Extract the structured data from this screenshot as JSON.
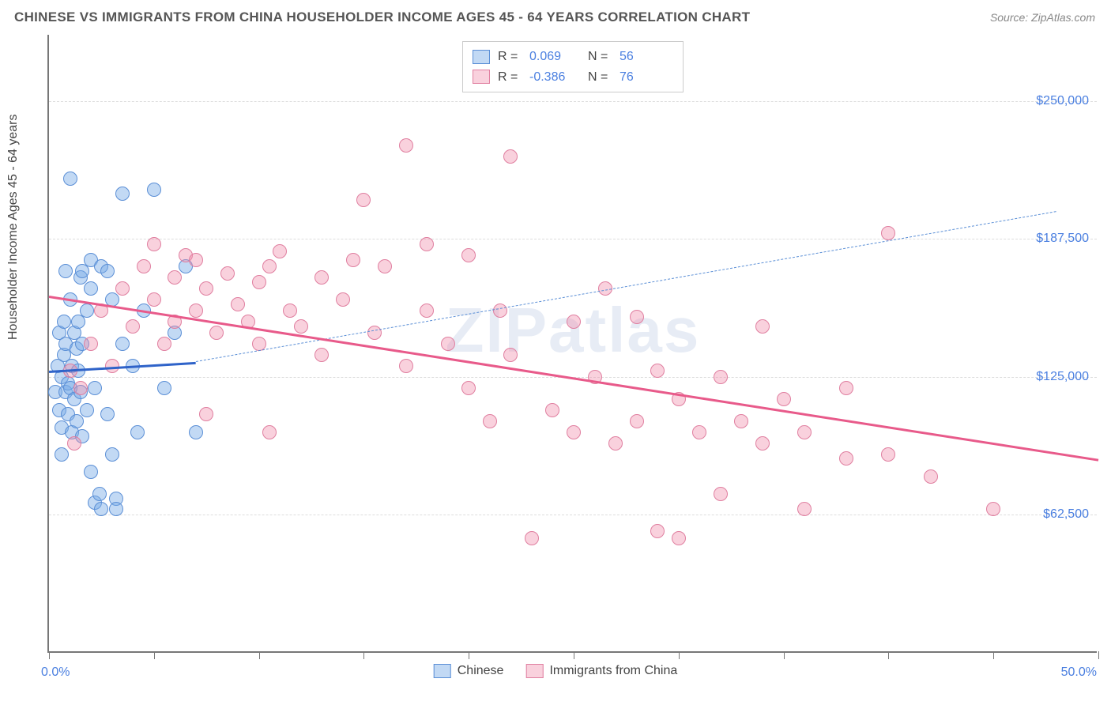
{
  "title": "CHINESE VS IMMIGRANTS FROM CHINA HOUSEHOLDER INCOME AGES 45 - 64 YEARS CORRELATION CHART",
  "source": "Source: ZipAtlas.com",
  "watermark": "ZIPatlas",
  "ylabel": "Householder Income Ages 45 - 64 years",
  "chart": {
    "type": "scatter",
    "background_color": "#ffffff",
    "grid_color": "#dddddd",
    "axis_color": "#777777",
    "x": {
      "min": 0.0,
      "max": 50.0,
      "label_min": "0.0%",
      "label_max": "50.0%",
      "ticks": [
        0,
        5,
        10,
        15,
        20,
        25,
        30,
        35,
        40,
        45,
        50
      ]
    },
    "y": {
      "min": 0,
      "max": 280000,
      "gridlines": [
        62500,
        125000,
        187500,
        250000
      ],
      "tick_labels": [
        "$62,500",
        "$125,000",
        "$187,500",
        "$250,000"
      ]
    },
    "series": [
      {
        "name": "Chinese",
        "label": "Chinese",
        "marker_fill": "rgba(120,170,230,0.45)",
        "marker_stroke": "#5b8fd6",
        "line_color": "#2f63c9",
        "dashed_color": "#5b8fd6",
        "r": 0.069,
        "n": 56,
        "trend": {
          "x1": 0.0,
          "y1": 128000,
          "x2": 7.0,
          "y2": 132000,
          "dash_x2": 48.0,
          "dash_y2": 200000
        },
        "points": [
          [
            0.3,
            118000
          ],
          [
            0.4,
            130000
          ],
          [
            0.5,
            110000
          ],
          [
            0.5,
            145000
          ],
          [
            0.6,
            102000
          ],
          [
            0.6,
            125000
          ],
          [
            0.7,
            135000
          ],
          [
            0.7,
            150000
          ],
          [
            0.8,
            118000
          ],
          [
            0.8,
            140000
          ],
          [
            0.9,
            108000
          ],
          [
            0.9,
            122000
          ],
          [
            1.0,
            160000
          ],
          [
            1.0,
            120000
          ],
          [
            1.1,
            130000
          ],
          [
            1.1,
            100000
          ],
          [
            1.2,
            145000
          ],
          [
            1.2,
            115000
          ],
          [
            1.3,
            138000
          ],
          [
            1.3,
            105000
          ],
          [
            1.4,
            150000
          ],
          [
            1.4,
            128000
          ],
          [
            1.5,
            170000
          ],
          [
            1.5,
            118000
          ],
          [
            1.6,
            140000
          ],
          [
            1.6,
            98000
          ],
          [
            1.8,
            155000
          ],
          [
            1.8,
            110000
          ],
          [
            2.0,
            178000
          ],
          [
            2.0,
            165000
          ],
          [
            2.0,
            82000
          ],
          [
            2.2,
            120000
          ],
          [
            2.2,
            68000
          ],
          [
            2.4,
            72000
          ],
          [
            2.5,
            65000
          ],
          [
            2.5,
            175000
          ],
          [
            2.8,
            108000
          ],
          [
            3.0,
            160000
          ],
          [
            3.0,
            90000
          ],
          [
            3.2,
            70000
          ],
          [
            3.2,
            65000
          ],
          [
            3.5,
            140000
          ],
          [
            3.5,
            208000
          ],
          [
            4.0,
            130000
          ],
          [
            4.2,
            100000
          ],
          [
            4.5,
            155000
          ],
          [
            5.0,
            210000
          ],
          [
            5.5,
            120000
          ],
          [
            6.0,
            145000
          ],
          [
            6.5,
            175000
          ],
          [
            7.0,
            100000
          ],
          [
            1.0,
            215000
          ],
          [
            0.8,
            173000
          ],
          [
            1.6,
            173000
          ],
          [
            2.8,
            173000
          ],
          [
            0.6,
            90000
          ]
        ]
      },
      {
        "name": "Immigrants from China",
        "label": "Immigrants from China",
        "marker_fill": "rgba(240,140,170,0.40)",
        "marker_stroke": "#e07fa0",
        "line_color": "#e85a8a",
        "r": -0.386,
        "n": 76,
        "trend": {
          "x1": 0.0,
          "y1": 162000,
          "x2": 50.0,
          "y2": 88000
        },
        "points": [
          [
            1.0,
            128000
          ],
          [
            1.2,
            95000
          ],
          [
            1.5,
            120000
          ],
          [
            2.0,
            140000
          ],
          [
            2.5,
            155000
          ],
          [
            3.0,
            130000
          ],
          [
            3.5,
            165000
          ],
          [
            4.0,
            148000
          ],
          [
            4.5,
            175000
          ],
          [
            5.0,
            160000
          ],
          [
            5.0,
            185000
          ],
          [
            5.5,
            140000
          ],
          [
            6.0,
            170000
          ],
          [
            6.0,
            150000
          ],
          [
            6.5,
            180000
          ],
          [
            7.0,
            155000
          ],
          [
            7.0,
            178000
          ],
          [
            7.5,
            165000
          ],
          [
            8.0,
            145000
          ],
          [
            8.5,
            172000
          ],
          [
            9.0,
            158000
          ],
          [
            9.5,
            150000
          ],
          [
            10.0,
            168000
          ],
          [
            10.0,
            140000
          ],
          [
            10.5,
            175000
          ],
          [
            11.0,
            182000
          ],
          [
            11.5,
            155000
          ],
          [
            12.0,
            148000
          ],
          [
            13.0,
            170000
          ],
          [
            13.0,
            135000
          ],
          [
            14.0,
            160000
          ],
          [
            14.5,
            178000
          ],
          [
            15.0,
            205000
          ],
          [
            15.5,
            145000
          ],
          [
            16.0,
            175000
          ],
          [
            17.0,
            130000
          ],
          [
            17.0,
            230000
          ],
          [
            18.0,
            155000
          ],
          [
            18.0,
            185000
          ],
          [
            19.0,
            140000
          ],
          [
            20.0,
            180000
          ],
          [
            20.0,
            120000
          ],
          [
            21.0,
            105000
          ],
          [
            21.5,
            155000
          ],
          [
            22.0,
            225000
          ],
          [
            22.0,
            135000
          ],
          [
            23.0,
            52000
          ],
          [
            24.0,
            110000
          ],
          [
            25.0,
            150000
          ],
          [
            25.0,
            100000
          ],
          [
            26.0,
            125000
          ],
          [
            26.5,
            165000
          ],
          [
            27.0,
            95000
          ],
          [
            28.0,
            152000
          ],
          [
            28.0,
            105000
          ],
          [
            29.0,
            55000
          ],
          [
            29.0,
            128000
          ],
          [
            30.0,
            115000
          ],
          [
            30.0,
            52000
          ],
          [
            31.0,
            100000
          ],
          [
            32.0,
            125000
          ],
          [
            32.0,
            72000
          ],
          [
            33.0,
            105000
          ],
          [
            34.0,
            95000
          ],
          [
            34.0,
            148000
          ],
          [
            35.0,
            115000
          ],
          [
            36.0,
            65000
          ],
          [
            36.0,
            100000
          ],
          [
            38.0,
            88000
          ],
          [
            38.0,
            120000
          ],
          [
            40.0,
            90000
          ],
          [
            40.0,
            190000
          ],
          [
            42.0,
            80000
          ],
          [
            45.0,
            65000
          ],
          [
            10.5,
            100000
          ],
          [
            7.5,
            108000
          ]
        ]
      }
    ]
  },
  "legend_top": {
    "r_label": "R =",
    "n_label": "N ="
  },
  "legend_bottom_items": [
    "Chinese",
    "Immigrants from China"
  ]
}
